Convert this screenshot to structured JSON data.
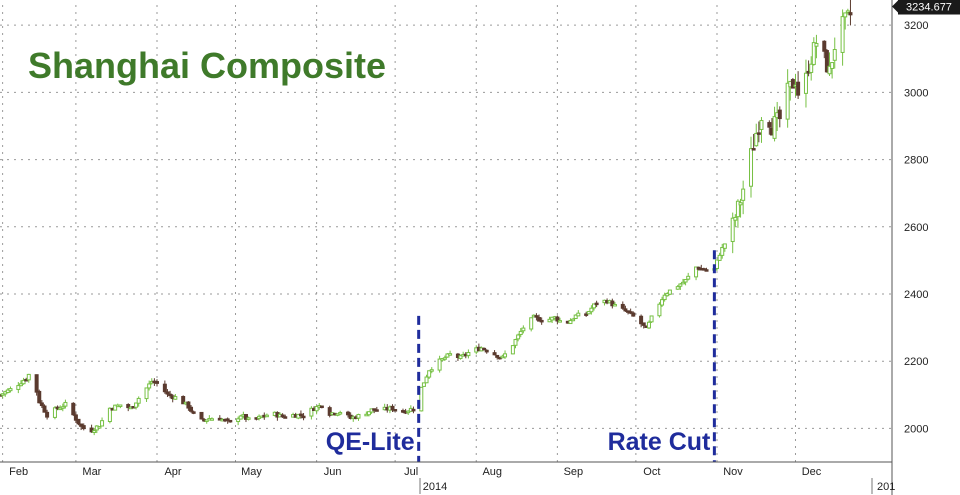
{
  "chart_data": {
    "type": "candlestick",
    "title": "Shanghai Composite",
    "xlabel": "",
    "ylabel": "",
    "year_label": "2014",
    "next_year_label": "201",
    "last_value_label": "3234.677",
    "last_value": 3234.677,
    "ylim": [
      1900,
      3260
    ],
    "y_ticks": [
      2000,
      2200,
      2400,
      2600,
      2800,
      3000,
      3200
    ],
    "grid": true,
    "month_labels": [
      {
        "label": "Feb",
        "day": 1
      },
      {
        "label": "Mar",
        "day": 29
      },
      {
        "label": "Apr",
        "day": 60
      },
      {
        "label": "May",
        "day": 90
      },
      {
        "label": "Jun",
        "day": 121
      },
      {
        "label": "Jul",
        "day": 151
      },
      {
        "label": "Aug",
        "day": 182
      },
      {
        "label": "Sep",
        "day": 213
      },
      {
        "label": "Oct",
        "day": 243
      },
      {
        "label": "Nov",
        "day": 274
      },
      {
        "label": "Dec",
        "day": 304
      }
    ],
    "x_range_days": [
      0,
      334
    ],
    "annotations": [
      {
        "label": "QE-Lite",
        "day": 160,
        "from": 1940,
        "to": 2335
      },
      {
        "label": "Rate Cut",
        "day": 273,
        "from": 1940,
        "to": 2530
      }
    ],
    "close_path": [
      [
        0,
        2100
      ],
      [
        5,
        2120
      ],
      [
        10,
        2150
      ],
      [
        12,
        2170
      ],
      [
        15,
        2080
      ],
      [
        18,
        2040
      ],
      [
        22,
        2060
      ],
      [
        26,
        2075
      ],
      [
        28,
        2040
      ],
      [
        31,
        2005
      ],
      [
        34,
        1990
      ],
      [
        38,
        2010
      ],
      [
        42,
        2060
      ],
      [
        46,
        2070
      ],
      [
        50,
        2060
      ],
      [
        54,
        2100
      ],
      [
        58,
        2140
      ],
      [
        61,
        2130
      ],
      [
        64,
        2100
      ],
      [
        68,
        2090
      ],
      [
        72,
        2065
      ],
      [
        76,
        2020
      ],
      [
        80,
        2030
      ],
      [
        84,
        2030
      ],
      [
        88,
        2015
      ],
      [
        92,
        2040
      ],
      [
        96,
        2020
      ],
      [
        100,
        2035
      ],
      [
        104,
        2045
      ],
      [
        108,
        2035
      ],
      [
        112,
        2040
      ],
      [
        116,
        2040
      ],
      [
        120,
        2060
      ],
      [
        123,
        2070
      ],
      [
        126,
        2045
      ],
      [
        130,
        2050
      ],
      [
        134,
        2030
      ],
      [
        138,
        2040
      ],
      [
        142,
        2055
      ],
      [
        146,
        2055
      ],
      [
        150,
        2060
      ],
      [
        154,
        2050
      ],
      [
        158,
        2060
      ],
      [
        161,
        2120
      ],
      [
        164,
        2175
      ],
      [
        168,
        2200
      ],
      [
        172,
        2220
      ],
      [
        176,
        2210
      ],
      [
        180,
        2230
      ],
      [
        184,
        2240
      ],
      [
        188,
        2225
      ],
      [
        192,
        2210
      ],
      [
        196,
        2250
      ],
      [
        200,
        2300
      ],
      [
        204,
        2330
      ],
      [
        208,
        2320
      ],
      [
        212,
        2330
      ],
      [
        216,
        2310
      ],
      [
        220,
        2335
      ],
      [
        224,
        2340
      ],
      [
        228,
        2375
      ],
      [
        232,
        2380
      ],
      [
        236,
        2360
      ],
      [
        240,
        2345
      ],
      [
        244,
        2320
      ],
      [
        247,
        2295
      ],
      [
        250,
        2345
      ],
      [
        254,
        2400
      ],
      [
        258,
        2420
      ],
      [
        262,
        2440
      ],
      [
        266,
        2480
      ],
      [
        270,
        2470
      ],
      [
        272,
        2450
      ],
      [
        275,
        2520
      ],
      [
        279,
        2580
      ],
      [
        283,
        2680
      ],
      [
        286,
        2780
      ],
      [
        289,
        2880
      ],
      [
        292,
        2960
      ],
      [
        295,
        2900
      ],
      [
        298,
        2920
      ],
      [
        301,
        3000
      ],
      [
        304,
        3040
      ],
      [
        306,
        2960
      ],
      [
        309,
        3080
      ],
      [
        312,
        3150
      ],
      [
        315,
        3100
      ],
      [
        317,
        3060
      ],
      [
        320,
        3180
      ],
      [
        322,
        3200
      ],
      [
        325,
        3230
      ]
    ]
  }
}
